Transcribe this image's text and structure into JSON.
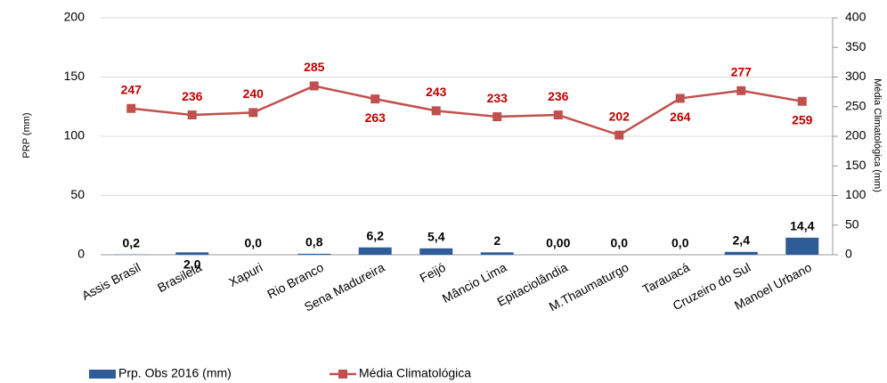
{
  "chart_data": {
    "type": "bar",
    "categories": [
      "Assis Brasil",
      "Brasileia",
      "Xapuri",
      "Rio Branco",
      "Sena Madureira",
      "Feijó",
      "Mâncio Lima",
      "Epitaciolândia",
      "M.Thaumaturgo",
      "Tarauacá",
      "Cruzeiro do Sul",
      "Manoel Urbano"
    ],
    "series": [
      {
        "name": "Prp. Obs 2016 (mm)",
        "type": "bar",
        "color": "#2e5c99",
        "values": [
          0.2,
          2.0,
          0.0,
          0.8,
          6.2,
          5.4,
          2,
          0.0,
          0.0,
          0.0,
          2.4,
          14.4
        ],
        "value_labels": [
          "0,2",
          "2,0",
          "0,0",
          "0,8",
          "6,2",
          "5,4",
          "2",
          "0,00",
          "0,0",
          "0,0",
          "2,4",
          "14,4"
        ]
      },
      {
        "name": "Média Climatológica",
        "type": "line",
        "axis": "y2",
        "color": "#c0504d",
        "values": [
          247,
          236,
          240,
          285,
          263,
          243,
          233,
          236,
          202,
          264,
          277,
          259
        ]
      }
    ],
    "ylabel": "PRP (mm)",
    "y2label": "Média Climatológica (mm)",
    "ylim": [
      0,
      200
    ],
    "yticks": [
      0,
      50,
      100,
      150,
      200
    ],
    "y2lim": [
      0,
      400
    ],
    "y2ticks": [
      0,
      50,
      100,
      150,
      200,
      250,
      300,
      350,
      400
    ],
    "grid": true,
    "legend": "bottom"
  }
}
